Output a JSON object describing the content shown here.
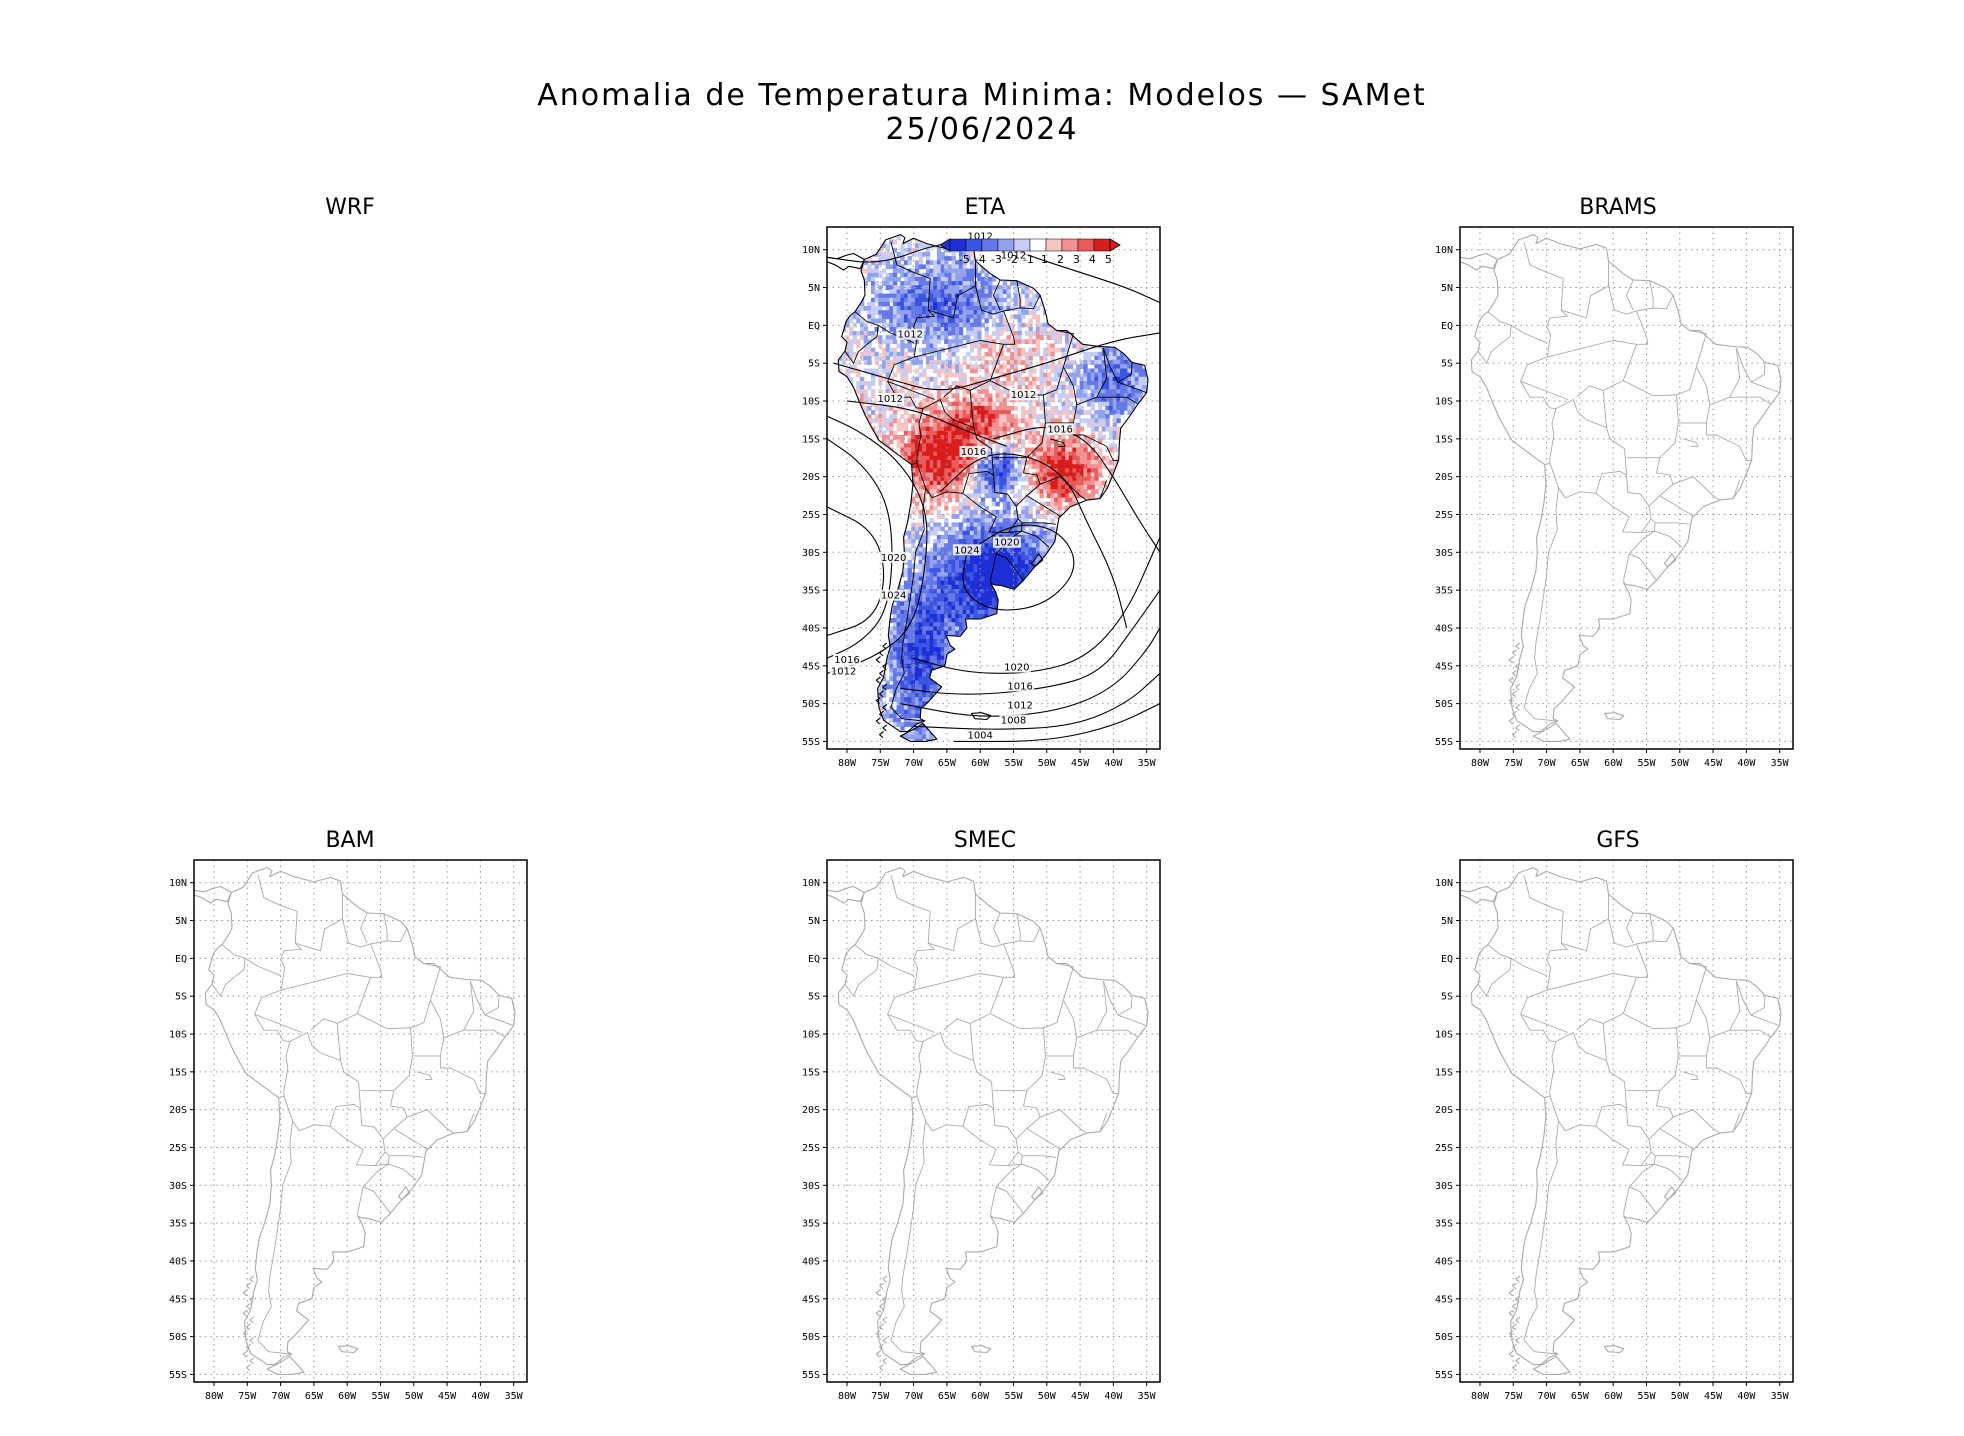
{
  "header": {
    "title": "Anomalia de Temperatura Minima: Modelos — SAMet",
    "date": "25/06/2024"
  },
  "axes": {
    "lat_labels": [
      "10N",
      "5N",
      "EQ",
      "5S",
      "10S",
      "15S",
      "20S",
      "25S",
      "30S",
      "35S",
      "40S",
      "45S",
      "50S",
      "55S"
    ],
    "lon_labels": [
      "80W",
      "75W",
      "70W",
      "65W",
      "60W",
      "55W",
      "50W",
      "45W",
      "40W",
      "35W"
    ]
  },
  "panels": [
    {
      "name": "WRF",
      "has_map": false,
      "has_data": false
    },
    {
      "name": "ETA",
      "has_map": true,
      "has_data": true
    },
    {
      "name": "BRAMS",
      "has_map": true,
      "has_data": false
    },
    {
      "name": "BAM",
      "has_map": true,
      "has_data": false
    },
    {
      "name": "SMEC",
      "has_map": true,
      "has_data": false
    },
    {
      "name": "GFS",
      "has_map": true,
      "has_data": false
    }
  ],
  "colorbar": {
    "labels": [
      "-5",
      "-4",
      "-3",
      "-2",
      "-1",
      "1",
      "2",
      "3",
      "4",
      "5"
    ],
    "colors": [
      "#1f2fd6",
      "#3a55e0",
      "#6478e8",
      "#93a2ef",
      "#c5ccf6",
      "#ffffff",
      "#f7c4c4",
      "#f29191",
      "#ea5b5b",
      "#d91c1c"
    ]
  },
  "isobar_labels": [
    "1012",
    "1012",
    "1012",
    "1012",
    "1012",
    "1016",
    "1016",
    "1020",
    "1020",
    "1024",
    "1024",
    "1016",
    "1012",
    "1020",
    "1016",
    "1012",
    "1008",
    "1004"
  ],
  "colors": {
    "coast": "#aaaaaa",
    "coast_eta": "#000000",
    "grid": "#999999",
    "warm": "#e02020",
    "cold": "#2233dd"
  }
}
